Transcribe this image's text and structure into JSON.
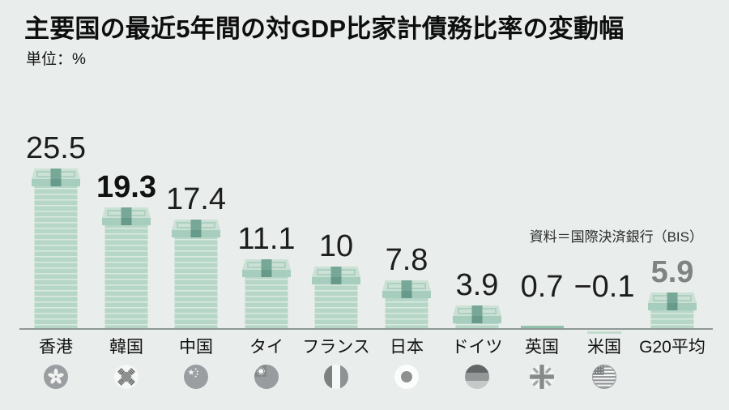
{
  "page": {
    "title": "主要国の最近5年間の対GDP比家計債務比率の変動幅",
    "unit_label": "単位：%",
    "source_label": "資料＝国際決済銀行（BIS）"
  },
  "chart_data": {
    "type": "bar",
    "title": "主要国の最近5年間の対GDP比家計債務比率の変動幅",
    "unit": "%",
    "source": "資料＝国際決済銀行（BIS）",
    "grid": false,
    "ylim": [
      -0.5,
      27
    ],
    "categories": [
      "香港",
      "韓国",
      "中国",
      "タイ",
      "フランス",
      "日本",
      "ドイツ",
      "英国",
      "米国",
      "G20平均"
    ],
    "values": [
      25.5,
      19.3,
      17.4,
      11.1,
      10,
      7.8,
      3.9,
      0.7,
      -0.1,
      5.9
    ],
    "value_labels": [
      "25.5",
      "19.3",
      "17.4",
      "11.1",
      "10",
      "7.8",
      "3.9",
      "0.7",
      "−0.1",
      "5.9"
    ],
    "ids": [
      "hong-kong",
      "south-korea",
      "china",
      "thailand",
      "france",
      "japan",
      "germany",
      "uk",
      "usa",
      "g20-average"
    ],
    "flags": [
      "hk",
      "kr",
      "cn",
      "th",
      "fr",
      "jp",
      "de",
      "uk",
      "us",
      null
    ],
    "emphasized_value": "19.3",
    "muted_value": "5.9",
    "bar_style": "money-stack",
    "colors": {
      "background": "#e9edec",
      "bar_body": "#b6d6c7",
      "bar_stripe_line": "#dbeae0",
      "cap_top": "#cbe1d5",
      "cap_inner_border": "#aed0c0",
      "cap_band": "#76a797",
      "cap_edge": "#a7cdbe",
      "cap_edge_band": "#679a8b",
      "small_bar": "#94c1ae",
      "negative_bar": "#c3dbce",
      "axis_line": "#8f9797",
      "value_text": "#1d1d1d",
      "muted_value_text": "#7e8384"
    }
  }
}
